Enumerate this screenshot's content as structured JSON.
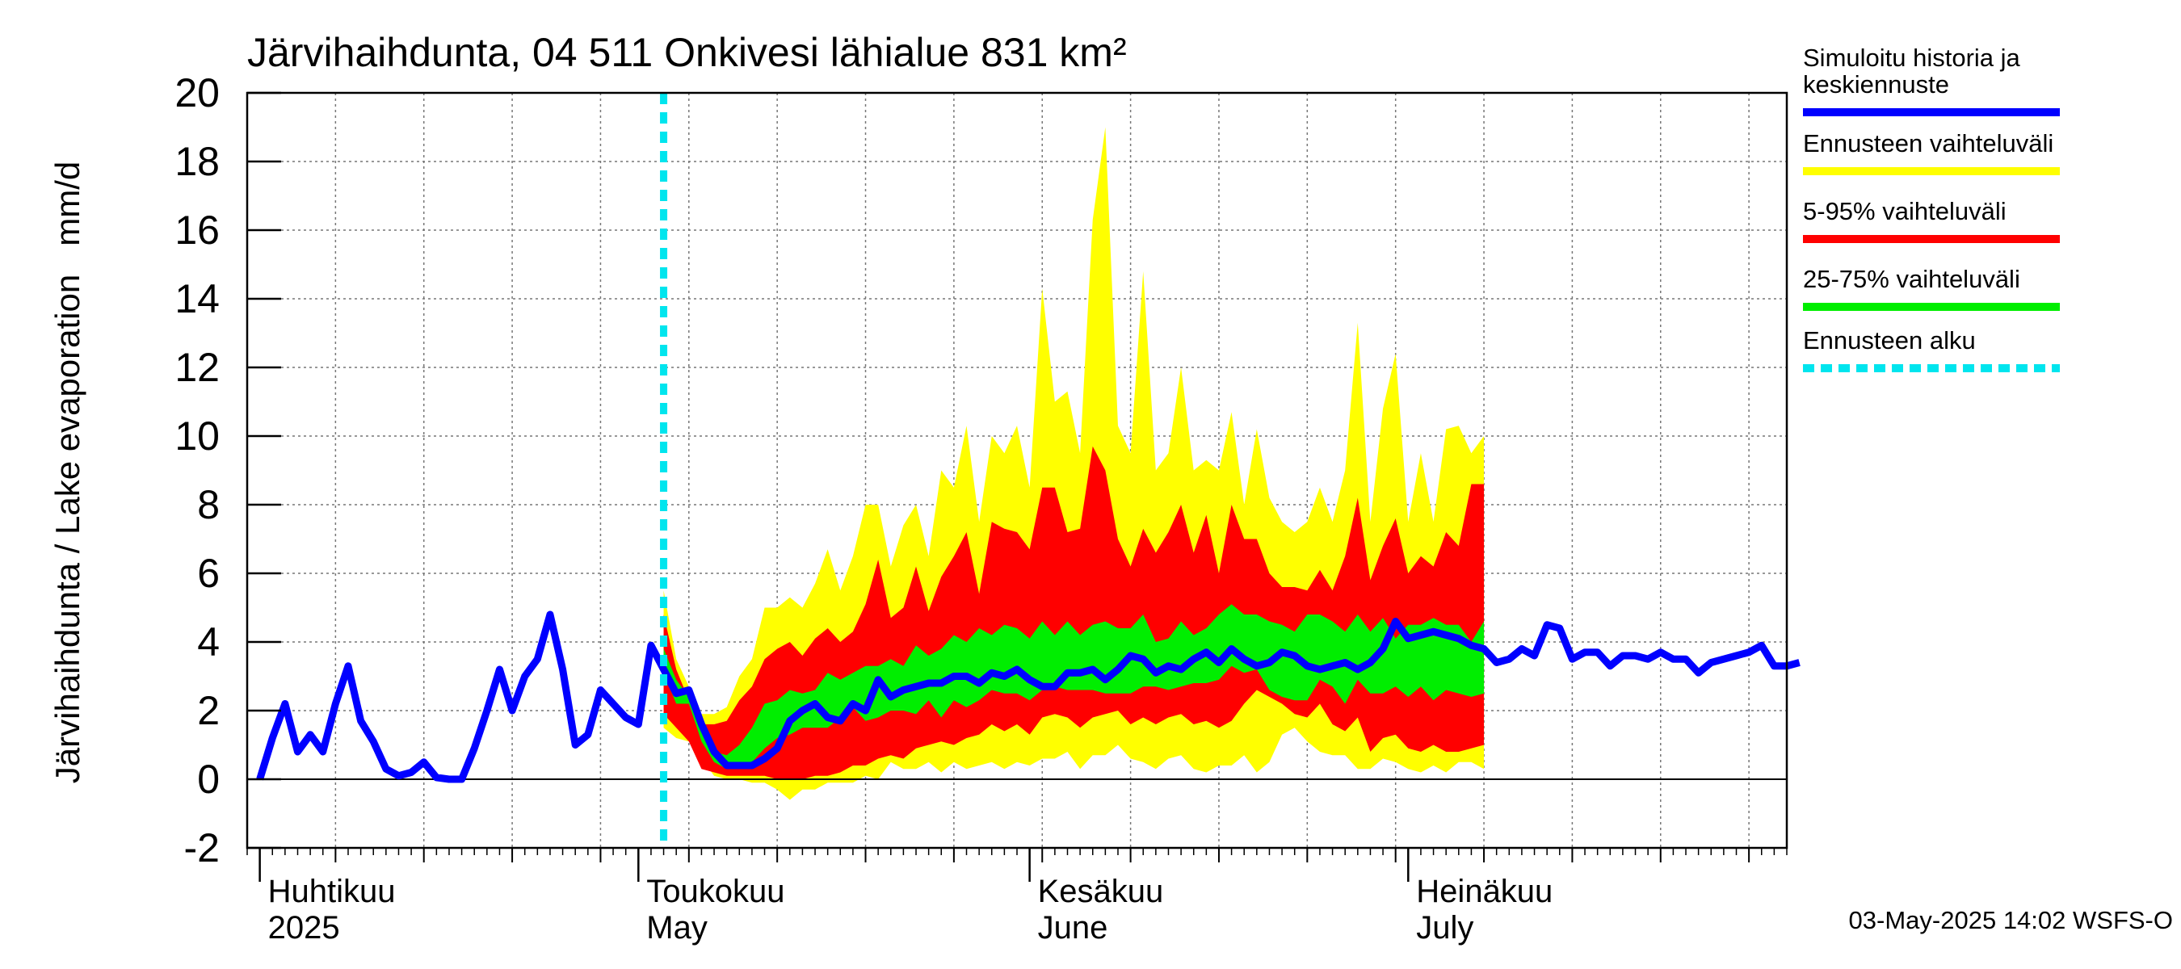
{
  "chart_data": {
    "type": "area",
    "title": "Järvihaihdunta, 04 511 Onkivesi lähialue 831 km²",
    "ylabel": "Järvihaihdunta / Lake evaporation   mm/d",
    "ylim": [
      -2,
      20
    ],
    "y_ticks": [
      -2,
      0,
      2,
      4,
      6,
      8,
      10,
      12,
      14,
      16,
      18,
      20
    ],
    "y_tick_labels": [
      "-2",
      "0",
      "2",
      "4",
      "6",
      "8",
      "10",
      "12",
      "14",
      "16",
      "18",
      "20"
    ],
    "grid": true,
    "legend_position": "right",
    "x_range": [
      "2025-03-31",
      "2025-07-31"
    ],
    "month_labels": [
      {
        "date": "2025-04-01",
        "fi": "Huhtikuu",
        "en": "2025"
      },
      {
        "date": "2025-05-01",
        "fi": "Toukokuu",
        "en": "May"
      },
      {
        "date": "2025-06-01",
        "fi": "Kesäkuu",
        "en": "June"
      },
      {
        "date": "2025-07-01",
        "fi": "Heinäkuu",
        "en": "July"
      }
    ],
    "forecast_start": "2025-05-03",
    "footer": "03-May-2025 14:02 WSFS-O",
    "legend": [
      {
        "label": "Simuloitu historia ja keskiennuste",
        "color": "#0000ff",
        "style": "solid"
      },
      {
        "label": "Ennusteen vaihteluväli",
        "color": "#ffff00",
        "style": "solid"
      },
      {
        "label": "5-95% vaihteluväli",
        "color": "#ff0000",
        "style": "solid"
      },
      {
        "label": "25-75% vaihteluväli",
        "color": "#00ee00",
        "style": "solid"
      },
      {
        "label": "Ennusteen alku",
        "color": "#00e5ee",
        "style": "dashed"
      }
    ],
    "x_start": "2025-04-01",
    "series": [
      {
        "name": "Ennusteen vaihteluväli",
        "color": "#ffff00",
        "upper": [
          5.5,
          3.5,
          2.7,
          1.9,
          1.9,
          2.1,
          3.0,
          3.5,
          5.0,
          5.0,
          5.3,
          5.0,
          5.7,
          6.7,
          5.5,
          6.5,
          8.0,
          8.0,
          6.2,
          7.4,
          8.0,
          6.5,
          9.0,
          8.5,
          10.3,
          7.5,
          10.0,
          9.5,
          10.3,
          8.5,
          14.3,
          11.0,
          11.3,
          9.5,
          16.3,
          19.0,
          10.3,
          9.5,
          14.8,
          9.0,
          9.5,
          12.0,
          9.0,
          9.3,
          9.0,
          10.7,
          8.0,
          10.2,
          8.2,
          7.5,
          7.2,
          7.5,
          8.5,
          7.5,
          9.0,
          13.3,
          7.5,
          10.8,
          12.4,
          7.5,
          9.5,
          7.5,
          10.2,
          10.3,
          9.5,
          10.0
        ],
        "lower": [
          1.5,
          1.2,
          1.1,
          0.6,
          0.1,
          0.0,
          0.0,
          -0.1,
          -0.1,
          -0.3,
          -0.6,
          -0.3,
          -0.3,
          -0.1,
          -0.1,
          -0.1,
          0.1,
          0.0,
          0.5,
          0.3,
          0.3,
          0.5,
          0.2,
          0.5,
          0.3,
          0.4,
          0.5,
          0.3,
          0.5,
          0.4,
          0.6,
          0.6,
          0.8,
          0.3,
          0.7,
          0.7,
          1.0,
          0.6,
          0.5,
          0.3,
          0.6,
          0.7,
          0.3,
          0.2,
          0.4,
          0.4,
          0.7,
          0.2,
          0.5,
          1.3,
          1.5,
          1.1,
          0.8,
          0.7,
          0.7,
          0.3,
          0.3,
          0.6,
          0.5,
          0.3,
          0.2,
          0.4,
          0.2,
          0.5,
          0.5,
          0.3
        ]
      },
      {
        "name": "5-95% vaihteluväli",
        "color": "#ff0000",
        "upper": [
          4.8,
          3.2,
          2.3,
          1.6,
          1.6,
          1.7,
          2.3,
          2.7,
          3.5,
          3.8,
          4.0,
          3.6,
          4.1,
          4.4,
          4.0,
          4.3,
          5.1,
          6.4,
          4.7,
          5.0,
          6.2,
          4.9,
          5.9,
          6.5,
          7.2,
          5.4,
          7.5,
          7.3,
          7.2,
          6.7,
          8.5,
          8.5,
          7.2,
          7.3,
          9.7,
          9.0,
          7.0,
          6.2,
          7.3,
          6.6,
          7.2,
          8.0,
          6.6,
          7.7,
          6.0,
          8.0,
          7.0,
          7.0,
          6.0,
          5.6,
          5.6,
          5.5,
          6.1,
          5.5,
          6.5,
          8.2,
          5.8,
          6.8,
          7.6,
          6.0,
          6.5,
          6.2,
          7.2,
          6.8,
          8.6,
          8.6
        ],
        "lower": [
          1.9,
          1.5,
          1.1,
          0.3,
          0.2,
          0.1,
          0.1,
          0.1,
          0.1,
          0.0,
          0.0,
          0.0,
          0.1,
          0.1,
          0.2,
          0.4,
          0.4,
          0.6,
          0.7,
          0.6,
          0.9,
          1.0,
          1.1,
          1.0,
          1.2,
          1.3,
          1.6,
          1.4,
          1.6,
          1.3,
          1.8,
          1.9,
          1.8,
          1.5,
          1.8,
          1.9,
          2.0,
          1.6,
          1.8,
          1.6,
          1.8,
          1.9,
          1.6,
          1.7,
          1.5,
          1.7,
          2.2,
          2.6,
          2.4,
          2.2,
          1.9,
          1.8,
          2.2,
          1.6,
          1.4,
          1.8,
          0.8,
          1.2,
          1.3,
          0.9,
          0.8,
          1.0,
          0.8,
          0.8,
          0.9,
          1.0
        ]
      },
      {
        "name": "25-75% vaihteluväli",
        "color": "#00ee00",
        "upper": [
          3.8,
          2.9,
          2.4,
          1.5,
          0.8,
          0.7,
          1.0,
          1.5,
          2.2,
          2.3,
          2.6,
          2.5,
          2.6,
          3.1,
          2.9,
          3.1,
          3.3,
          3.3,
          3.5,
          3.3,
          3.9,
          3.6,
          3.8,
          4.2,
          4.0,
          4.4,
          4.2,
          4.5,
          4.4,
          4.1,
          4.6,
          4.2,
          4.6,
          4.2,
          4.5,
          4.6,
          4.4,
          4.4,
          4.8,
          4.0,
          4.1,
          4.6,
          4.2,
          4.4,
          4.8,
          5.1,
          4.8,
          4.8,
          4.6,
          4.5,
          4.3,
          4.8,
          4.8,
          4.6,
          4.3,
          4.8,
          4.3,
          4.7,
          4.1,
          4.5,
          4.5,
          4.7,
          4.5,
          4.5,
          4.0,
          4.6
        ],
        "lower": [
          3.1,
          2.2,
          2.2,
          1.1,
          0.5,
          0.3,
          0.3,
          0.5,
          0.9,
          1.2,
          1.3,
          1.5,
          1.5,
          1.5,
          1.8,
          2.1,
          1.7,
          1.8,
          2.0,
          2.0,
          1.9,
          2.3,
          1.8,
          2.3,
          2.1,
          2.3,
          2.6,
          2.5,
          2.5,
          2.3,
          2.6,
          2.7,
          2.6,
          2.6,
          2.6,
          2.5,
          2.5,
          2.5,
          2.7,
          2.7,
          2.6,
          2.7,
          2.8,
          2.8,
          2.9,
          3.3,
          3.1,
          3.2,
          2.6,
          2.4,
          2.3,
          2.3,
          2.9,
          2.7,
          2.2,
          2.9,
          2.5,
          2.5,
          2.7,
          2.4,
          2.7,
          2.3,
          2.6,
          2.5,
          2.4,
          2.5
        ]
      },
      {
        "name": "Simuloitu historia ja keskiennuste",
        "color": "#0000ff",
        "values": [
          0.0,
          1.2,
          2.2,
          0.8,
          1.3,
          0.8,
          2.2,
          3.3,
          1.7,
          1.1,
          0.3,
          0.1,
          0.2,
          0.5,
          0.05,
          0.0,
          0.0,
          0.9,
          2.0,
          3.2,
          2.0,
          3.0,
          3.5,
          4.8,
          3.2,
          1.0,
          1.3,
          2.6,
          2.2,
          1.8,
          1.6,
          3.9,
          3.2,
          2.5,
          2.6,
          1.6,
          0.8,
          0.4,
          0.4,
          0.4,
          0.6,
          0.9,
          1.7,
          2.0,
          2.2,
          1.8,
          1.7,
          2.2,
          2.0,
          2.9,
          2.4,
          2.6,
          2.7,
          2.8,
          2.8,
          3.0,
          3.0,
          2.8,
          3.1,
          3.0,
          3.2,
          2.9,
          2.7,
          2.7,
          3.1,
          3.1,
          3.2,
          2.9,
          3.2,
          3.6,
          3.5,
          3.1,
          3.3,
          3.2,
          3.5,
          3.7,
          3.4,
          3.8,
          3.5,
          3.3,
          3.4,
          3.7,
          3.6,
          3.3,
          3.2,
          3.3,
          3.4,
          3.2,
          3.4,
          3.8,
          4.6,
          4.1,
          4.2,
          4.3,
          4.2,
          4.1,
          3.9,
          3.8,
          3.4,
          3.5,
          3.8,
          3.6,
          4.5,
          4.4,
          3.5,
          3.7,
          3.7,
          3.3,
          3.6,
          3.6,
          3.5,
          3.7,
          3.5,
          3.5,
          3.1,
          3.4,
          3.5,
          3.6,
          3.7,
          3.9,
          3.3,
          3.3,
          3.4
        ]
      }
    ]
  }
}
